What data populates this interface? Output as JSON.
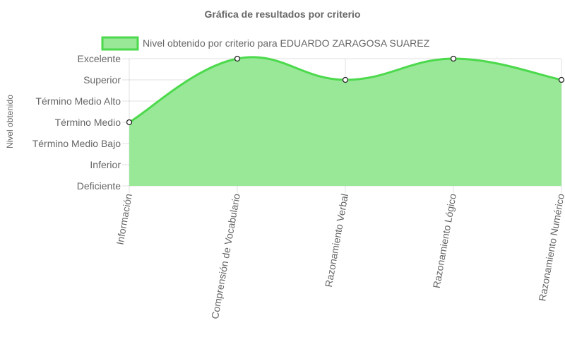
{
  "chart_data": {
    "type": "area",
    "title": "Gráfica de resultados por criterio",
    "ylabel": "Nivel obtenido",
    "xlabel": "",
    "y_levels": [
      "Deficiente",
      "Inferior",
      "Término Medio Bajo",
      "Término Medio",
      "Término Medio Alto",
      "Superior",
      "Excelente"
    ],
    "categories": [
      "Información",
      "Comprensión de Vocabulario",
      "Razonamiento Verbal",
      "Razonamiento Lógico",
      "Razonamiento Numérico"
    ],
    "series": [
      {
        "name": "Nivel obtenido por criterio para EDUARDO  ZARAGOSA SUAREZ",
        "values": [
          3,
          6,
          5,
          6,
          5
        ],
        "line_color": "#4cd94c",
        "fill_color": "#98e898"
      }
    ],
    "legend_position": "top",
    "grid": true,
    "smooth": true
  }
}
